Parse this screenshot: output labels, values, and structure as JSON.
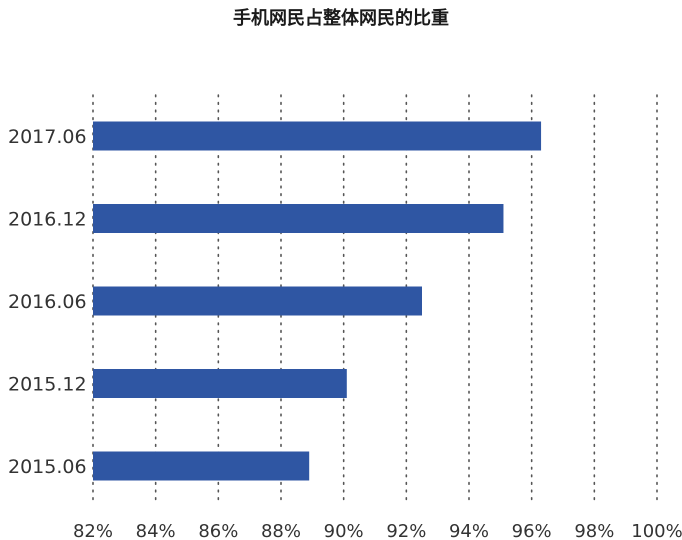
{
  "chart_data": {
    "type": "bar",
    "orientation": "horizontal",
    "title": "手机网民占整体网民的比重",
    "categories": [
      "2017.06",
      "2016.12",
      "2016.06",
      "2015.12",
      "2015.06"
    ],
    "values": [
      96.3,
      95.1,
      92.5,
      90.1,
      88.9
    ],
    "xlim": [
      82,
      100
    ],
    "xticks": [
      82,
      84,
      86,
      88,
      90,
      92,
      94,
      96,
      98,
      100
    ],
    "xtick_labels": [
      "82%",
      "84%",
      "86%",
      "88%",
      "90%",
      "92%",
      "94%",
      "96%",
      "98%",
      "100%"
    ],
    "xlabel": "",
    "ylabel": "",
    "grid": "vertical-dotted",
    "legend": "none",
    "bar_color": "#2f56a3",
    "grid_color": "#555555",
    "text_color": "#333333"
  }
}
